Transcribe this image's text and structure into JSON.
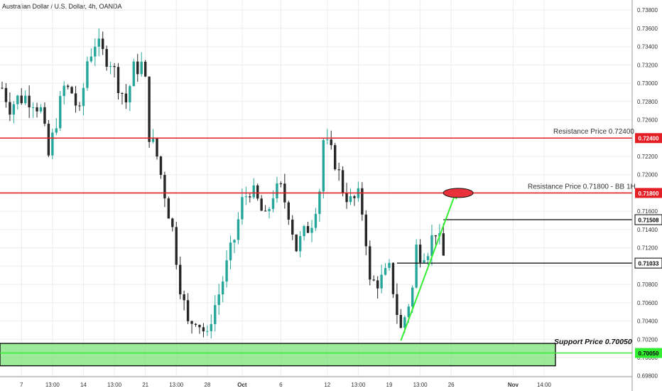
{
  "header": {
    "title": "Australian Dollar / U.S. Dollar, 4h, OANDA"
  },
  "colors": {
    "up": "#26a69a",
    "down": "#262626",
    "resistance": "#e31e24",
    "support_fill": "#7ee37a",
    "trendline": "#33ee33",
    "grid": "#ececec",
    "axis_text": "#333333"
  },
  "chart_data": {
    "type": "candlestick",
    "title": "Australian Dollar / U.S. Dollar, 4h, OANDA",
    "ylim": [
      0.6979,
      0.7391
    ],
    "xlim": [
      0,
      148
    ],
    "grid": "on",
    "y_ticks": [
      "0.73800",
      "0.73600",
      "0.73400",
      "0.73200",
      "0.73000",
      "0.72800",
      "0.72600",
      "0.72400",
      "0.72200",
      "0.72000",
      "0.71800",
      "0.71600",
      "0.71400",
      "0.71200",
      "0.71000",
      "0.70800",
      "0.70600",
      "0.70400",
      "0.70200",
      "0.70000",
      "0.69800"
    ],
    "x_ticks": [
      {
        "i": 5,
        "label": "7"
      },
      {
        "i": 13,
        "label": "13:00"
      },
      {
        "i": 21,
        "label": "14"
      },
      {
        "i": 29,
        "label": "13:00"
      },
      {
        "i": 37,
        "label": "21"
      },
      {
        "i": 45,
        "label": "13:00"
      },
      {
        "i": 53,
        "label": "28"
      },
      {
        "i": 62,
        "label": "Oct",
        "bold": true
      },
      {
        "i": 72,
        "label": "6"
      },
      {
        "i": 84,
        "label": "12"
      },
      {
        "i": 92,
        "label": "13:00"
      },
      {
        "i": 100,
        "label": "19"
      },
      {
        "i": 108,
        "label": "13:00"
      },
      {
        "i": 116,
        "label": "26"
      },
      {
        "i": 132,
        "label": "Nov",
        "bold": true
      },
      {
        "i": 140,
        "label": "14:00"
      }
    ],
    "anchor_points": [
      [
        0,
        0.7295
      ],
      [
        2,
        0.7275
      ],
      [
        4,
        0.7283
      ],
      [
        6,
        0.7285
      ],
      [
        8,
        0.7282
      ],
      [
        10,
        0.727
      ],
      [
        12,
        0.722
      ],
      [
        14,
        0.726
      ],
      [
        16,
        0.7295
      ],
      [
        18,
        0.729
      ],
      [
        20,
        0.7265
      ],
      [
        22,
        0.7325
      ],
      [
        24,
        0.7345
      ],
      [
        26,
        0.7332
      ],
      [
        28,
        0.7325
      ],
      [
        30,
        0.73
      ],
      [
        32,
        0.728
      ],
      [
        34,
        0.7315
      ],
      [
        36,
        0.732
      ],
      [
        37,
        0.73
      ],
      [
        38,
        0.7245
      ],
      [
        40,
        0.722
      ],
      [
        42,
        0.718
      ],
      [
        44,
        0.714
      ],
      [
        46,
        0.708
      ],
      [
        48,
        0.7035
      ],
      [
        50,
        0.7045
      ],
      [
        52,
        0.703
      ],
      [
        53,
        0.702
      ],
      [
        54,
        0.7045
      ],
      [
        56,
        0.707
      ],
      [
        58,
        0.71
      ],
      [
        60,
        0.713
      ],
      [
        62,
        0.717
      ],
      [
        64,
        0.7185
      ],
      [
        66,
        0.717
      ],
      [
        68,
        0.715
      ],
      [
        70,
        0.718
      ],
      [
        72,
        0.7183
      ],
      [
        74,
        0.716
      ],
      [
        76,
        0.712
      ],
      [
        78,
        0.7135
      ],
      [
        80,
        0.715
      ],
      [
        82,
        0.7185
      ],
      [
        83,
        0.7238
      ],
      [
        84,
        0.723
      ],
      [
        86,
        0.7215
      ],
      [
        88,
        0.7185
      ],
      [
        90,
        0.717
      ],
      [
        92,
        0.7175
      ],
      [
        93,
        0.716
      ],
      [
        94,
        0.713
      ],
      [
        95,
        0.708
      ],
      [
        96,
        0.7082
      ],
      [
        98,
        0.7085
      ],
      [
        100,
        0.7095
      ],
      [
        101,
        0.7075
      ],
      [
        102,
        0.705
      ],
      [
        103,
        0.703
      ],
      [
        104,
        0.7045
      ],
      [
        106,
        0.7075
      ],
      [
        107,
        0.712
      ],
      [
        108,
        0.7115
      ],
      [
        110,
        0.712
      ],
      [
        112,
        0.714
      ],
      [
        113,
        0.7125
      ],
      [
        114,
        0.711
      ]
    ],
    "resistance_lines": [
      {
        "price": 0.724,
        "label": "Resistance Price 0.72400"
      },
      {
        "price": 0.718,
        "label": "Resistance Price 0.71800 - BB 1H"
      }
    ],
    "support_zone": {
      "top": 0.70155,
      "bottom": 0.6991,
      "line": 0.7005,
      "label": "Support Price 0.70050"
    },
    "price_markers": [
      {
        "price": 0.71508,
        "label": "0.71508",
        "start_i": 114
      },
      {
        "price": 0.71033,
        "label": "0.71033",
        "start_i": 102
      }
    ],
    "trendline": {
      "x1": 103,
      "y1": 0.70185,
      "x2": 117,
      "y2": 0.71785
    },
    "target_ellipse": {
      "x": 118,
      "y": 0.718
    },
    "axis_badges": {
      "r1": "0.72400",
      "r2": "0.71800",
      "p1": "0.71508",
      "p2": "0.71033",
      "support": "0.70050"
    }
  }
}
